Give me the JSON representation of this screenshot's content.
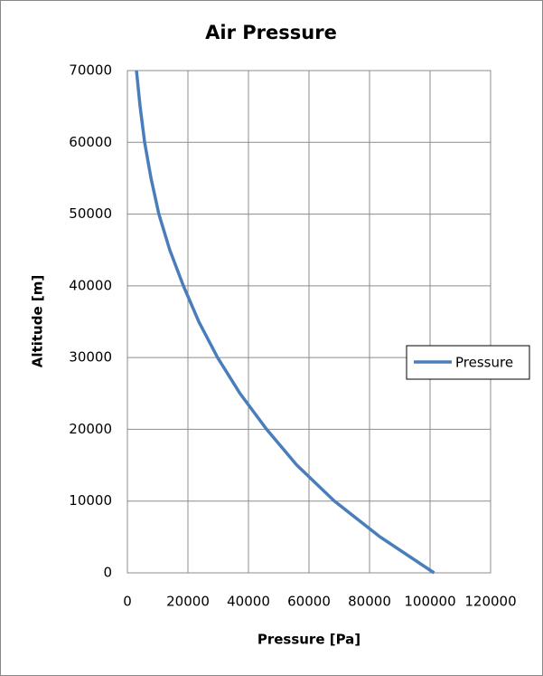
{
  "chart_data": {
    "type": "line",
    "title": "Air Pressure",
    "x_label": "Pressure [Pa]",
    "y_label": "Altitude [m]",
    "x": [
      101325,
      83500,
      68400,
      56000,
      46000,
      37200,
      29800,
      23600,
      18500,
      14000,
      10400,
      7800,
      5700,
      4200,
      3000
    ],
    "series": [
      {
        "name": "Pressure",
        "color": "#4a7ebb",
        "values": [
          0,
          5000,
          10000,
          15000,
          20000,
          25000,
          30000,
          35000,
          40000,
          45000,
          50000,
          55000,
          60000,
          65000,
          70000
        ]
      }
    ],
    "xlim": [
      0,
      120000
    ],
    "xticks": [
      0,
      20000,
      40000,
      60000,
      80000,
      100000,
      120000
    ],
    "ylim": [
      0,
      70000
    ],
    "yticks": [
      0,
      10000,
      20000,
      30000,
      40000,
      50000,
      60000,
      70000
    ],
    "grid": true,
    "legend": "right"
  }
}
